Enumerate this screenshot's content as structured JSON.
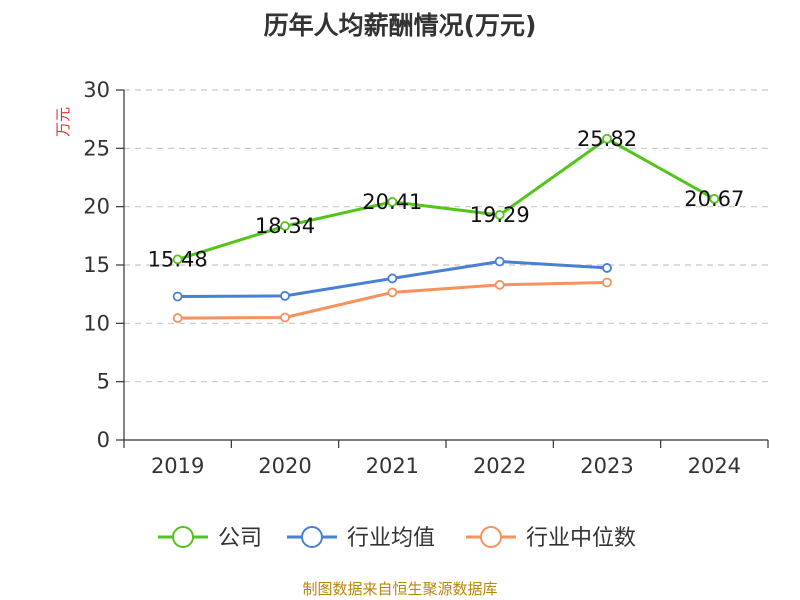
{
  "chart_data": {
    "type": "line",
    "title": "历年人均薪酬情况(万元)",
    "ylabel": "万元",
    "xlabel": "",
    "categories": [
      "2019",
      "2020",
      "2021",
      "2022",
      "2023",
      "2024"
    ],
    "ylim": [
      0,
      30
    ],
    "yticks": [
      0,
      5,
      10,
      15,
      20,
      25,
      30
    ],
    "grid": true,
    "legend_position": "bottom",
    "series": [
      {
        "name": "公司",
        "color": "#52c41a",
        "values": [
          15.48,
          18.34,
          20.41,
          19.29,
          25.82,
          20.67
        ],
        "show_labels": true
      },
      {
        "name": "行业均值",
        "color": "#4a7fd6",
        "values": [
          12.3,
          12.35,
          13.85,
          15.3,
          14.75,
          null
        ],
        "show_labels": false
      },
      {
        "name": "行业中位数",
        "color": "#f5925e",
        "values": [
          10.45,
          10.5,
          12.65,
          13.3,
          13.5,
          null
        ],
        "show_labels": false
      }
    ],
    "source": "制图数据来自恒生聚源数据库"
  }
}
